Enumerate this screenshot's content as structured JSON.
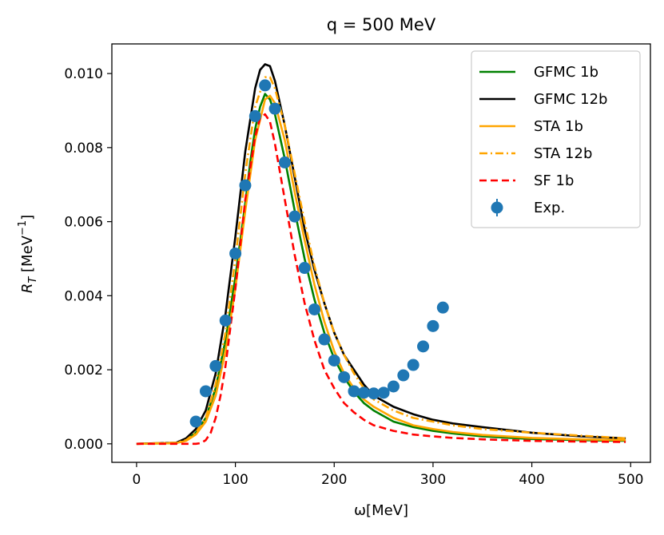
{
  "chart_data": {
    "type": "line",
    "title": "q = 500 MeV",
    "xlabel": "ω[MeV]",
    "ylabel_main": "R",
    "ylabel_sub": "T",
    "ylabel_unit_prefix": " [MeV",
    "ylabel_unit_exp": "−1",
    "ylabel_unit_suffix": "]",
    "xlim": [
      -25,
      520
    ],
    "ylim": [
      -0.0005,
      0.0108
    ],
    "xticks": [
      0,
      100,
      200,
      300,
      400,
      500
    ],
    "yticks": [
      0.0,
      0.002,
      0.004,
      0.006,
      0.008,
      0.01
    ],
    "xtick_labels": [
      "0",
      "100",
      "200",
      "300",
      "400",
      "500"
    ],
    "ytick_labels": [
      "0.000",
      "0.002",
      "0.004",
      "0.006",
      "0.008",
      "0.010"
    ],
    "legend_position": "top-right",
    "series": [
      {
        "name": "GFMC 1b",
        "color": "#008000",
        "style": "solid",
        "x": [
          0,
          40,
          50,
          60,
          70,
          80,
          90,
          100,
          110,
          115,
          120,
          125,
          130,
          135,
          140,
          150,
          160,
          170,
          180,
          190,
          200,
          210,
          220,
          230,
          240,
          260,
          280,
          300,
          320,
          350,
          400,
          450,
          495
        ],
        "y": [
          0,
          2e-05,
          0.0001,
          0.0003,
          0.0007,
          0.0015,
          0.0028,
          0.0045,
          0.0065,
          0.0076,
          0.0085,
          0.0091,
          0.00945,
          0.0093,
          0.0089,
          0.0077,
          0.0063,
          0.005,
          0.0039,
          0.003,
          0.0023,
          0.0018,
          0.0014,
          0.0011,
          0.0009,
          0.0006,
          0.00045,
          0.00035,
          0.00028,
          0.0002,
          0.00013,
          0.0001,
          8e-05
        ]
      },
      {
        "name": "GFMC 12b",
        "color": "#000000",
        "style": "solid",
        "x": [
          0,
          40,
          50,
          60,
          70,
          80,
          90,
          100,
          110,
          120,
          125,
          130,
          135,
          140,
          150,
          160,
          170,
          180,
          190,
          200,
          210,
          220,
          230,
          240,
          260,
          280,
          300,
          320,
          350,
          400,
          450,
          495
        ],
        "y": [
          0,
          3e-05,
          0.00015,
          0.0004,
          0.0009,
          0.0019,
          0.0035,
          0.0056,
          0.0079,
          0.0096,
          0.0101,
          0.01025,
          0.0102,
          0.0098,
          0.0086,
          0.0072,
          0.0058,
          0.0047,
          0.0038,
          0.003,
          0.0024,
          0.002,
          0.0016,
          0.0013,
          0.001,
          0.0008,
          0.00065,
          0.00055,
          0.00045,
          0.0003,
          0.0002,
          0.00015
        ]
      },
      {
        "name": "STA 1b",
        "color": "#ffa500",
        "style": "solid",
        "x": [
          0,
          40,
          50,
          60,
          70,
          80,
          90,
          100,
          110,
          120,
          130,
          135,
          140,
          150,
          160,
          170,
          180,
          190,
          200,
          210,
          220,
          230,
          240,
          260,
          280,
          300,
          320,
          350,
          400,
          450,
          495
        ],
        "y": [
          0,
          2e-05,
          8e-05,
          0.00025,
          0.0006,
          0.0013,
          0.0025,
          0.0042,
          0.0063,
          0.0082,
          0.0093,
          0.0094,
          0.0092,
          0.0082,
          0.0068,
          0.0055,
          0.0043,
          0.0033,
          0.0025,
          0.0019,
          0.0015,
          0.0012,
          0.001,
          0.0007,
          0.0005,
          0.0004,
          0.00032,
          0.00024,
          0.00016,
          0.00012,
          0.0001
        ]
      },
      {
        "name": "STA 12b",
        "color": "#ffa500",
        "style": "dashdot",
        "x": [
          0,
          40,
          50,
          60,
          70,
          80,
          90,
          100,
          110,
          120,
          130,
          135,
          140,
          150,
          160,
          170,
          180,
          190,
          200,
          210,
          220,
          230,
          240,
          260,
          280,
          300,
          320,
          350,
          400,
          450,
          495
        ],
        "y": [
          0,
          3e-05,
          0.0001,
          0.0003,
          0.0007,
          0.0016,
          0.003,
          0.005,
          0.0073,
          0.0091,
          0.0099,
          0.0099,
          0.0096,
          0.0086,
          0.0073,
          0.006,
          0.0048,
          0.0038,
          0.003,
          0.0024,
          0.0019,
          0.0015,
          0.0012,
          0.0009,
          0.0007,
          0.0006,
          0.0005,
          0.0004,
          0.0003,
          0.00022,
          0.00015
        ]
      },
      {
        "name": "SF 1b",
        "color": "#ff0000",
        "style": "dashed",
        "x": [
          0,
          60,
          65,
          70,
          75,
          80,
          85,
          90,
          100,
          110,
          120,
          125,
          130,
          135,
          140,
          150,
          160,
          170,
          180,
          190,
          200,
          210,
          220,
          230,
          240,
          260,
          280,
          300,
          320,
          350,
          400,
          450,
          495
        ],
        "y": [
          0,
          0,
          2e-05,
          0.0001,
          0.0003,
          0.0007,
          0.0013,
          0.0021,
          0.0042,
          0.0066,
          0.0083,
          0.0088,
          0.0089,
          0.0087,
          0.0081,
          0.0066,
          0.0051,
          0.0038,
          0.0028,
          0.002,
          0.0015,
          0.0011,
          0.00085,
          0.00065,
          0.0005,
          0.00035,
          0.00025,
          0.0002,
          0.00016,
          0.00012,
          8e-05,
          6e-05,
          5e-05
        ]
      }
    ],
    "scatter": {
      "name": "Exp.",
      "color": "#1f77b4",
      "x": [
        60,
        70,
        80,
        90,
        100,
        110,
        120,
        130,
        140,
        150,
        160,
        170,
        180,
        190,
        200,
        210,
        220,
        230,
        240,
        250,
        260,
        270,
        280,
        290,
        300,
        310
      ],
      "y": [
        0.0006,
        0.00142,
        0.0021,
        0.00333,
        0.00514,
        0.00698,
        0.00885,
        0.00968,
        0.00905,
        0.0076,
        0.00614,
        0.00475,
        0.00363,
        0.00282,
        0.00225,
        0.0018,
        0.00142,
        0.00138,
        0.00136,
        0.00138,
        0.00155,
        0.00185,
        0.00213,
        0.00263,
        0.00318,
        0.00368
      ],
      "yerr": [
        5e-05,
        5e-05,
        6e-05,
        7e-05,
        8e-05,
        0.0001,
        0.00012,
        0.00015,
        0.00015,
        0.00012,
        0.0001,
        8e-05,
        7e-05,
        6e-05,
        5e-05,
        5e-05,
        5e-05,
        5e-05,
        5e-05,
        5e-05,
        5e-05,
        5e-05,
        5e-05,
        6e-05,
        6e-05,
        7e-05
      ]
    }
  }
}
